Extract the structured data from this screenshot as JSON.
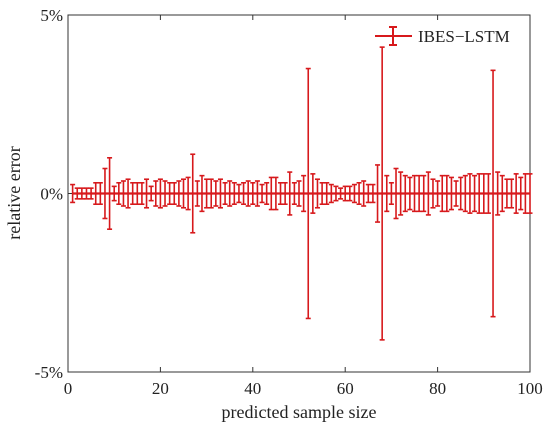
{
  "chart_data": {
    "type": "line",
    "xlabel": "predicted sample size",
    "ylabel": "relative error",
    "xlim": [
      0,
      100
    ],
    "ylim": [
      -5,
      5
    ],
    "x_ticks": [
      0,
      20,
      40,
      60,
      80,
      100
    ],
    "x_tick_labels": [
      "0",
      "20",
      "40",
      "60",
      "80",
      "100"
    ],
    "y_ticks": [
      -5,
      0,
      5
    ],
    "y_tick_labels": [
      "-5%",
      "0%",
      "5%"
    ],
    "grid": false,
    "legend_position": "top-right",
    "series": [
      {
        "name": "IBES−LSTM",
        "color": "#d7191c",
        "x": [
          1,
          2,
          3,
          4,
          5,
          6,
          7,
          8,
          9,
          10,
          11,
          12,
          13,
          14,
          15,
          16,
          17,
          18,
          19,
          20,
          21,
          22,
          23,
          24,
          25,
          26,
          27,
          28,
          29,
          30,
          31,
          32,
          33,
          34,
          35,
          36,
          37,
          38,
          39,
          40,
          41,
          42,
          43,
          44,
          45,
          46,
          47,
          48,
          49,
          50,
          51,
          52,
          53,
          54,
          55,
          56,
          57,
          58,
          59,
          60,
          61,
          62,
          63,
          64,
          65,
          66,
          67,
          68,
          69,
          70,
          71,
          72,
          73,
          74,
          75,
          76,
          77,
          78,
          79,
          80,
          81,
          82,
          83,
          84,
          85,
          86,
          87,
          88,
          89,
          90,
          91,
          92,
          93,
          94,
          95,
          96,
          97,
          98,
          99,
          100
        ],
        "y": [
          0,
          0,
          0,
          0,
          0,
          0,
          0,
          0,
          0,
          0,
          0,
          0,
          0,
          0,
          0,
          0,
          0,
          0,
          0,
          0,
          0,
          0,
          0,
          0,
          0,
          0,
          0,
          0,
          0,
          0,
          0,
          0,
          0,
          0,
          0,
          0,
          0,
          0,
          0,
          0,
          0,
          0,
          0,
          0,
          0,
          0,
          0,
          0,
          0,
          0,
          0,
          0,
          0,
          0,
          0,
          0,
          0,
          0,
          0,
          0,
          0,
          0,
          0,
          0,
          0,
          0,
          0,
          0,
          0,
          0,
          0,
          0,
          0,
          0,
          0,
          0,
          0,
          0,
          0,
          0,
          0,
          0,
          0,
          0,
          0,
          0,
          0,
          0,
          0,
          0,
          0,
          0,
          0,
          0,
          0,
          0,
          0,
          0,
          0,
          0
        ],
        "error": [
          0.25,
          0.15,
          0.15,
          0.15,
          0.15,
          0.3,
          0.3,
          0.7,
          1.0,
          0.2,
          0.3,
          0.35,
          0.4,
          0.3,
          0.3,
          0.3,
          0.4,
          0.2,
          0.35,
          0.4,
          0.35,
          0.3,
          0.3,
          0.35,
          0.4,
          0.45,
          1.1,
          0.35,
          0.5,
          0.4,
          0.4,
          0.35,
          0.4,
          0.3,
          0.35,
          0.3,
          0.25,
          0.3,
          0.35,
          0.3,
          0.35,
          0.25,
          0.3,
          0.45,
          0.45,
          0.3,
          0.3,
          0.6,
          0.3,
          0.35,
          0.5,
          3.5,
          0.55,
          0.4,
          0.3,
          0.3,
          0.25,
          0.2,
          0.15,
          0.2,
          0.2,
          0.25,
          0.3,
          0.35,
          0.25,
          0.25,
          0.8,
          4.1,
          0.5,
          0.3,
          0.7,
          0.6,
          0.5,
          0.45,
          0.5,
          0.5,
          0.5,
          0.6,
          0.4,
          0.35,
          0.5,
          0.5,
          0.45,
          0.35,
          0.45,
          0.5,
          0.55,
          0.5,
          0.55,
          0.55,
          0.55,
          3.45,
          0.6,
          0.5,
          0.4,
          0.4,
          0.55,
          0.45,
          0.55,
          0.55
        ]
      }
    ]
  }
}
